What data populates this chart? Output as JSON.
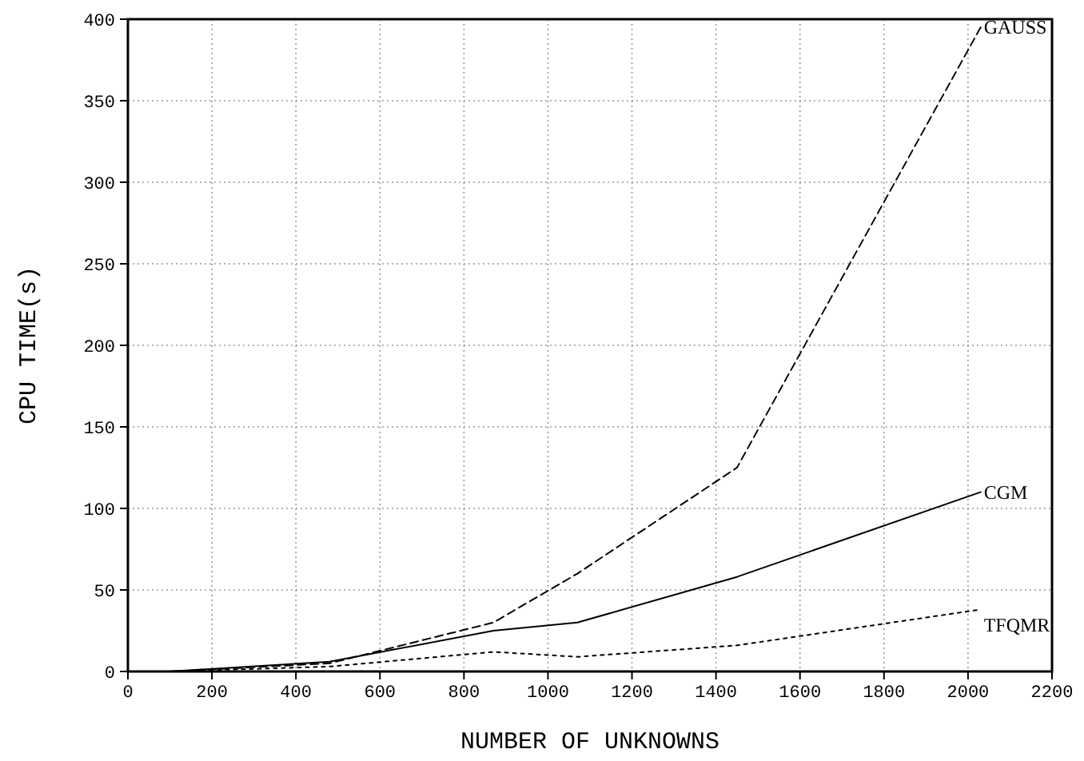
{
  "chart_data": {
    "type": "line",
    "xlabel": "NUMBER OF UNKNOWNS",
    "ylabel": "CPU TIME(s)",
    "xlim": [
      0,
      2200
    ],
    "ylim": [
      0,
      400
    ],
    "xticks": [
      0,
      200,
      400,
      600,
      800,
      1000,
      1200,
      1400,
      1600,
      1800,
      2000,
      2200
    ],
    "yticks": [
      0,
      50,
      100,
      150,
      200,
      250,
      300,
      350,
      400
    ],
    "grid": true,
    "marker": "none",
    "x": [
      100,
      480,
      870,
      1070,
      1450,
      2030
    ],
    "series": [
      {
        "name": "GAUSS",
        "color": "#000000",
        "line_style": "dashed",
        "values": [
          0,
          5,
          30,
          60,
          125,
          395
        ]
      },
      {
        "name": "CGM",
        "color": "#000000",
        "line_style": "solid",
        "values": [
          0,
          6,
          25,
          30,
          58,
          110
        ]
      },
      {
        "name": "TFQMR",
        "color": "#000000",
        "line_style": "dotted",
        "values": [
          0,
          3,
          12,
          9,
          16,
          38
        ]
      }
    ]
  }
}
